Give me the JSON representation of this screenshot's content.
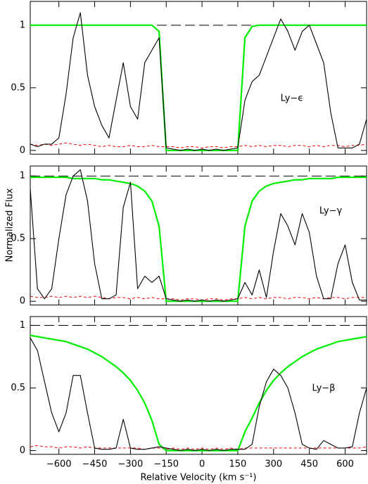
{
  "chart_data": [
    {
      "type": "line",
      "annotation": "Ly−ϵ",
      "x": [
        -720,
        -690,
        -660,
        -630,
        -600,
        -570,
        -540,
        -510,
        -480,
        -450,
        -420,
        -390,
        -360,
        -330,
        -300,
        -270,
        -240,
        -210,
        -180,
        -150,
        -120,
        -90,
        -60,
        -30,
        0,
        30,
        60,
        90,
        120,
        150,
        180,
        210,
        240,
        270,
        300,
        330,
        360,
        390,
        420,
        450,
        480,
        510,
        540,
        570,
        600,
        630,
        660,
        690
      ],
      "values": [
        0.05,
        0.03,
        0.05,
        0.05,
        0.1,
        0.45,
        0.9,
        1.1,
        0.6,
        0.35,
        0.2,
        0.1,
        0.4,
        0.7,
        0.35,
        0.25,
        0.7,
        0.8,
        0.9,
        0.02,
        0.01,
        0.0,
        0.01,
        0.0,
        0.01,
        0.0,
        0.01,
        0.0,
        0.01,
        0.02,
        0.4,
        0.55,
        0.6,
        0.75,
        0.9,
        1.05,
        0.95,
        0.8,
        0.95,
        1.0,
        0.85,
        0.7,
        0.3,
        0.02,
        0.02,
        0.02,
        0.05,
        0.25
      ],
      "model_values": [
        1,
        1,
        1,
        1,
        1,
        1,
        1,
        1,
        1,
        1,
        1,
        1,
        1,
        1,
        1,
        1,
        1,
        1,
        0.95,
        0.0,
        0,
        0,
        0,
        0,
        0,
        0,
        0,
        0,
        0,
        0.0,
        0.9,
        0.99,
        1,
        1,
        1,
        1,
        1,
        1,
        1,
        1,
        1,
        1,
        1,
        1,
        1,
        1,
        1,
        1
      ],
      "noise_values": [
        0.05,
        0.04,
        0.05,
        0.04,
        0.05,
        0.06,
        0.05,
        0.04,
        0.05,
        0.04,
        0.03,
        0.04,
        0.03,
        0.03,
        0.04,
        0.03,
        0.03,
        0.04,
        0.03,
        0.03,
        0.03,
        0.02,
        0.03,
        0.03,
        0.02,
        0.03,
        0.03,
        0.02,
        0.03,
        0.03,
        0.04,
        0.03,
        0.04,
        0.03,
        0.04,
        0.04,
        0.03,
        0.04,
        0.04,
        0.03,
        0.04,
        0.03,
        0.04,
        0.04,
        0.03,
        0.04,
        0.04,
        0.05
      ],
      "hline": 1,
      "color": "#000000",
      "model_color": "#00ee00",
      "noise_color": "#ee0000",
      "xlim": [
        -720,
        690
      ],
      "ylim": [
        -0.03,
        1.19
      ],
      "yticks": [
        0,
        0.5,
        1
      ]
    },
    {
      "type": "line",
      "annotation": "Ly−γ",
      "x": [
        -720,
        -690,
        -660,
        -630,
        -600,
        -570,
        -540,
        -510,
        -480,
        -450,
        -420,
        -390,
        -360,
        -330,
        -300,
        -270,
        -240,
        -210,
        -180,
        -150,
        -120,
        -90,
        -60,
        -30,
        0,
        30,
        60,
        90,
        120,
        150,
        180,
        210,
        240,
        270,
        300,
        330,
        360,
        390,
        420,
        450,
        480,
        510,
        540,
        570,
        600,
        630,
        660,
        690
      ],
      "values": [
        0.9,
        0.1,
        0.02,
        0.1,
        0.5,
        0.85,
        1.0,
        1.05,
        0.8,
        0.3,
        0.02,
        0.02,
        0.05,
        0.75,
        0.95,
        0.1,
        0.2,
        0.15,
        0.2,
        0.02,
        0.01,
        0.0,
        0.01,
        0.0,
        0.01,
        0.0,
        0.01,
        0.0,
        0.01,
        0.02,
        0.15,
        0.05,
        0.25,
        0.03,
        0.4,
        0.7,
        0.6,
        0.45,
        0.7,
        0.55,
        0.2,
        0.02,
        0.02,
        0.3,
        0.45,
        0.15,
        0.01,
        0.01
      ],
      "model_values": [
        0.99,
        0.99,
        0.99,
        0.99,
        0.99,
        0.99,
        0.98,
        0.98,
        0.98,
        0.98,
        0.97,
        0.97,
        0.96,
        0.95,
        0.94,
        0.92,
        0.88,
        0.8,
        0.6,
        0.0,
        0,
        0,
        0,
        0,
        0,
        0,
        0,
        0,
        0,
        0.0,
        0.6,
        0.8,
        0.88,
        0.92,
        0.94,
        0.95,
        0.96,
        0.97,
        0.97,
        0.98,
        0.98,
        0.98,
        0.98,
        0.99,
        0.99,
        0.99,
        0.99,
        0.99
      ],
      "noise_values": [
        0.04,
        0.03,
        0.03,
        0.04,
        0.03,
        0.04,
        0.03,
        0.04,
        0.03,
        0.04,
        0.03,
        0.02,
        0.03,
        0.03,
        0.02,
        0.03,
        0.02,
        0.03,
        0.02,
        0.02,
        0.02,
        0.01,
        0.02,
        0.02,
        0.01,
        0.02,
        0.02,
        0.01,
        0.02,
        0.02,
        0.03,
        0.02,
        0.03,
        0.02,
        0.03,
        0.03,
        0.02,
        0.03,
        0.03,
        0.02,
        0.03,
        0.02,
        0.03,
        0.03,
        0.02,
        0.03,
        0.03,
        0.03
      ],
      "hline": 1,
      "color": "#000000",
      "model_color": "#00ee00",
      "noise_color": "#ee0000",
      "xlim": [
        -720,
        690
      ],
      "ylim": [
        -0.03,
        1.08
      ],
      "yticks": [
        0,
        0.5,
        1
      ]
    },
    {
      "type": "line",
      "annotation": "Ly−β",
      "x_label": "Relative Velocity (km s⁻¹)",
      "y_label": "Normalized Flux",
      "x": [
        -720,
        -690,
        -660,
        -630,
        -600,
        -570,
        -540,
        -510,
        -480,
        -450,
        -420,
        -390,
        -360,
        -330,
        -300,
        -270,
        -240,
        -210,
        -180,
        -150,
        -120,
        -90,
        -60,
        -30,
        0,
        30,
        60,
        90,
        120,
        150,
        180,
        210,
        240,
        270,
        300,
        330,
        360,
        390,
        420,
        450,
        480,
        510,
        540,
        570,
        600,
        630,
        660,
        690
      ],
      "values": [
        0.9,
        0.8,
        0.55,
        0.3,
        0.15,
        0.3,
        0.6,
        0.6,
        0.3,
        0.02,
        0.01,
        0.01,
        0.02,
        0.25,
        0.02,
        0.01,
        0.01,
        0.02,
        0.03,
        0.02,
        0.01,
        0.0,
        0.01,
        0.0,
        0.01,
        0.0,
        0.01,
        0.0,
        0.01,
        0.01,
        0.01,
        0.05,
        0.35,
        0.55,
        0.65,
        0.6,
        0.5,
        0.3,
        0.05,
        0.02,
        0.01,
        0.08,
        0.05,
        0.02,
        0.02,
        0.03,
        0.3,
        0.5
      ],
      "model_values": [
        0.92,
        0.91,
        0.9,
        0.89,
        0.88,
        0.87,
        0.85,
        0.83,
        0.81,
        0.78,
        0.75,
        0.71,
        0.67,
        0.62,
        0.56,
        0.48,
        0.38,
        0.24,
        0.05,
        0.0,
        0,
        0,
        0,
        0,
        0,
        0,
        0,
        0,
        0,
        0.0,
        0.15,
        0.26,
        0.38,
        0.48,
        0.56,
        0.62,
        0.67,
        0.71,
        0.75,
        0.78,
        0.81,
        0.83,
        0.85,
        0.87,
        0.88,
        0.89,
        0.9,
        0.91
      ],
      "noise_values": [
        0.03,
        0.04,
        0.03,
        0.03,
        0.02,
        0.03,
        0.03,
        0.02,
        0.03,
        0.02,
        0.02,
        0.02,
        0.02,
        0.02,
        0.02,
        0.02,
        0.01,
        0.02,
        0.02,
        0.01,
        0.02,
        0.01,
        0.02,
        0.01,
        0.02,
        0.01,
        0.02,
        0.01,
        0.02,
        0.01,
        0.02,
        0.02,
        0.02,
        0.02,
        0.02,
        0.02,
        0.02,
        0.02,
        0.02,
        0.02,
        0.02,
        0.02,
        0.02,
        0.02,
        0.02,
        0.02,
        0.02,
        0.03
      ],
      "hline": 1,
      "color": "#000000",
      "model_color": "#00ee00",
      "noise_color": "#ee0000",
      "xlim": [
        -720,
        690
      ],
      "ylim": [
        -0.03,
        1.07
      ],
      "yticks": [
        0,
        0.5,
        1
      ],
      "xticks": [
        {
          "value": -600,
          "label": "−600"
        },
        {
          "value": -450,
          "label": "−450"
        },
        {
          "value": -300,
          "label": "−300"
        },
        {
          "value": -150,
          "label": "−150"
        },
        0,
        150,
        300,
        450,
        600
      ]
    }
  ]
}
